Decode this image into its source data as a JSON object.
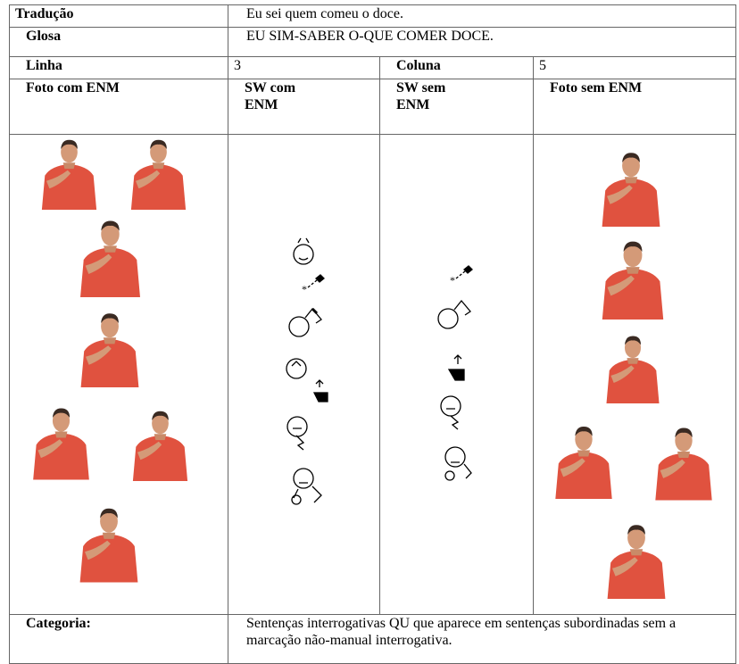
{
  "table": {
    "rows": [
      [
        "Tradução",
        "Eu sei quem comeu o doce."
      ],
      [
        "Glosa",
        "EU SIM-SABER O-QUE COMER DOCE."
      ],
      [
        "Linha",
        "3",
        "Coluna",
        "5"
      ],
      [
        "Foto com ENM",
        "SW com ENM",
        "SW sem ENM",
        "Foto sem ENM"
      ],
      [
        "Categoria:",
        "Sentenças interrogativas QU que aparece em sentenças subordinadas sem a marcação não-manual interrogativa."
      ]
    ]
  }
}
